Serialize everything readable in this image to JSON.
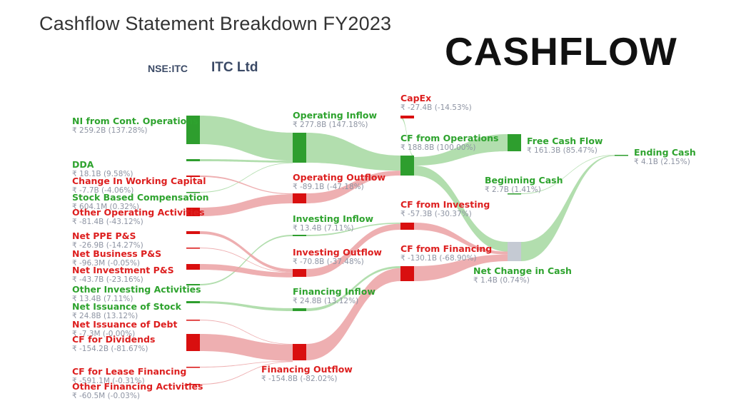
{
  "header": {
    "title": "Cashflow Statement Breakdown FY2023",
    "ticker": "NSE:ITC",
    "company": "ITC Ltd",
    "banner": "CASHFLOW"
  },
  "colors": {
    "positive": "#2ea32e",
    "negative": "#dd1f1f",
    "positive_node": "#2e9e2e",
    "negative_node": "#d90f0f",
    "neutral_node": "#c5cad3",
    "positive_link": "#a5d8a0",
    "negative_link": "#eba1a3"
  },
  "nodes": [
    {
      "id": "ni",
      "name": "NI from Cont. Operations",
      "value": "₹ 259.2B (137.28%)",
      "sign": "pos"
    },
    {
      "id": "dda",
      "name": "DDA",
      "value": "₹ 18.1B (9.58%)",
      "sign": "pos"
    },
    {
      "id": "wc",
      "name": "Change In Working Capital",
      "value": "₹ -7.7B (-4.06%)",
      "sign": "neg"
    },
    {
      "id": "sbc",
      "name": "Stock Based Compensation",
      "value": "₹ 604.1M (0.32%)",
      "sign": "pos"
    },
    {
      "id": "ooa",
      "name": "Other Operating Activities",
      "value": "₹ -81.4B (-43.12%)",
      "sign": "neg"
    },
    {
      "id": "ppe",
      "name": "Net PPE P&S",
      "value": "₹ -26.9B (-14.27%)",
      "sign": "neg"
    },
    {
      "id": "nbps",
      "name": "Net Business P&S",
      "value": "₹ -96.3M (-0.05%)",
      "sign": "neg"
    },
    {
      "id": "nips",
      "name": "Net Investment P&S",
      "value": "₹ -43.7B (-23.16%)",
      "sign": "neg"
    },
    {
      "id": "oia",
      "name": "Other Investing Activities",
      "value": "₹ 13.4B (7.11%)",
      "sign": "pos"
    },
    {
      "id": "nis",
      "name": "Net Issuance of Stock",
      "value": "₹ 24.8B (13.12%)",
      "sign": "pos"
    },
    {
      "id": "nid",
      "name": "Net Issuance of Debt",
      "value": "₹ -7.3M (-0.00%)",
      "sign": "neg"
    },
    {
      "id": "div",
      "name": "CF for Dividends",
      "value": "₹ -154.2B (-81.67%)",
      "sign": "neg"
    },
    {
      "id": "lease",
      "name": "CF for Lease Financing",
      "value": "₹ -591.1M (-0.31%)",
      "sign": "neg"
    },
    {
      "id": "ofa",
      "name": "Other Financing Activities",
      "value": "₹ -60.5M (-0.03%)",
      "sign": "neg"
    },
    {
      "id": "opin",
      "name": "Operating Inflow",
      "value": "₹ 277.8B (147.18%)",
      "sign": "pos"
    },
    {
      "id": "opout",
      "name": "Operating Outflow",
      "value": "₹ -89.1B (-47.18%)",
      "sign": "neg"
    },
    {
      "id": "invin",
      "name": "Investing Inflow",
      "value": "₹ 13.4B (7.11%)",
      "sign": "pos"
    },
    {
      "id": "invout",
      "name": "Investing Outflow",
      "value": "₹ -70.8B (-37.48%)",
      "sign": "neg"
    },
    {
      "id": "finin",
      "name": "Financing Inflow",
      "value": "₹ 24.8B (13.12%)",
      "sign": "pos"
    },
    {
      "id": "finout",
      "name": "Financing Outflow",
      "value": "₹ -154.8B (-82.02%)",
      "sign": "neg"
    },
    {
      "id": "capex",
      "name": "CapEx",
      "value": "₹ -27.4B (-14.53%)",
      "sign": "neg"
    },
    {
      "id": "cfo",
      "name": "CF from Operations",
      "value": "₹ 188.8B (100.00%)",
      "sign": "pos"
    },
    {
      "id": "cfi",
      "name": "CF from Investing",
      "value": "₹ -57.3B (-30.37%)",
      "sign": "neg"
    },
    {
      "id": "cff",
      "name": "CF from Financing",
      "value": "₹ -130.1B (-68.90%)",
      "sign": "neg"
    },
    {
      "id": "fcf",
      "name": "Free Cash Flow",
      "value": "₹ 161.3B (85.47%)",
      "sign": "pos"
    },
    {
      "id": "begin",
      "name": "Beginning Cash",
      "value": "₹ 2.7B (1.41%)",
      "sign": "pos"
    },
    {
      "id": "ncc",
      "name": "Net Change in Cash",
      "value": "₹ 1.4B (0.74%)",
      "sign": "pos"
    },
    {
      "id": "end",
      "name": "Ending Cash",
      "value": "₹ 4.1B (2.15%)",
      "sign": "pos"
    }
  ],
  "links": [
    {
      "source": "ni",
      "target": "opin",
      "value": 259.2
    },
    {
      "source": "dda",
      "target": "opin",
      "value": 18.1
    },
    {
      "source": "sbc",
      "target": "opin",
      "value": 0.6
    },
    {
      "source": "wc",
      "target": "opout",
      "value": 7.7
    },
    {
      "source": "ooa",
      "target": "opout",
      "value": 81.4
    },
    {
      "source": "oia",
      "target": "invin",
      "value": 13.4
    },
    {
      "source": "ppe",
      "target": "invout",
      "value": 26.9
    },
    {
      "source": "nbps",
      "target": "invout",
      "value": 0.1
    },
    {
      "source": "nips",
      "target": "invout",
      "value": 43.7
    },
    {
      "source": "nis",
      "target": "finin",
      "value": 24.8
    },
    {
      "source": "nid",
      "target": "finout",
      "value": 0.01
    },
    {
      "source": "div",
      "target": "finout",
      "value": 154.2
    },
    {
      "source": "lease",
      "target": "finout",
      "value": 0.6
    },
    {
      "source": "ofa",
      "target": "finout",
      "value": 0.06
    },
    {
      "source": "opin",
      "target": "cfo",
      "value": 277.8
    },
    {
      "source": "opout",
      "target": "cfo",
      "value": 89.1
    },
    {
      "source": "invin",
      "target": "cfi",
      "value": 13.4
    },
    {
      "source": "invout",
      "target": "cfi",
      "value": 70.8
    },
    {
      "source": "finin",
      "target": "cff",
      "value": 24.8
    },
    {
      "source": "finout",
      "target": "cff",
      "value": 154.8
    },
    {
      "source": "cfo",
      "target": "capex",
      "value": 27.4
    },
    {
      "source": "cfo",
      "target": "fcf",
      "value": 161.3
    },
    {
      "source": "cfo",
      "target": "ncc",
      "value": 188.8
    },
    {
      "source": "cfi",
      "target": "ncc",
      "value": 57.3
    },
    {
      "source": "cff",
      "target": "ncc",
      "value": 130.1
    },
    {
      "source": "begin",
      "target": "end",
      "value": 2.7
    },
    {
      "source": "ncc",
      "target": "end",
      "value": 1.4
    }
  ]
}
